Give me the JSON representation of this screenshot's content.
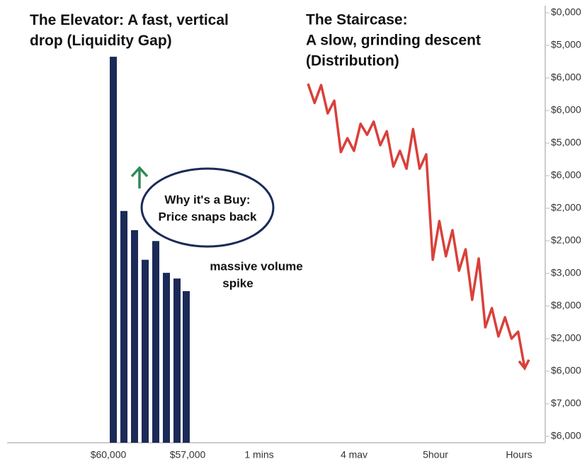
{
  "chart_data": [
    {
      "type": "bar",
      "title": "The Elevator: A fast, vertical drop (Liquidity Gap)",
      "values": [
        88.6,
        53.2,
        48.8,
        42.0,
        46.3,
        39.0,
        37.7,
        34.8
      ],
      "color": "#1b2a57",
      "ylim": [
        0,
        100
      ]
    },
    {
      "type": "line",
      "title_lines": [
        "The Staircase:",
        "A slow, grinding descent",
        "(Distribution)"
      ],
      "values": [
        82.4,
        78.0,
        82.1,
        75.6,
        78.5,
        66.7,
        69.9,
        67.0,
        73.2,
        70.7,
        73.7,
        68.3,
        71.5,
        63.4,
        67.0,
        62.9,
        72.0,
        62.9,
        66.2,
        42.0,
        50.9,
        42.8,
        48.8,
        39.5,
        44.4,
        32.8,
        42.3,
        26.5,
        30.9,
        24.4,
        28.8,
        23.9,
        25.5,
        17.1
      ],
      "color": "#d9403a",
      "ylim": [
        0,
        100
      ]
    }
  ],
  "y_axis_labels": [
    "$0,000",
    "$5,000",
    "$6,000",
    "$6,000",
    "$5,000",
    "$6,000",
    "$2,000",
    "$2,000",
    "$3,000",
    "$8,000",
    "$2,000",
    "$6,000",
    "$7,000",
    "$6,000"
  ],
  "x_axis_labels": [
    "$60,000",
    "$57,000",
    "1 mins",
    "4 mav",
    "5hour",
    "Hours"
  ],
  "annotations": {
    "callout": [
      "Why it's a Buy:",
      "Price snaps back"
    ],
    "volume": [
      "massive volume",
      "spike"
    ]
  }
}
